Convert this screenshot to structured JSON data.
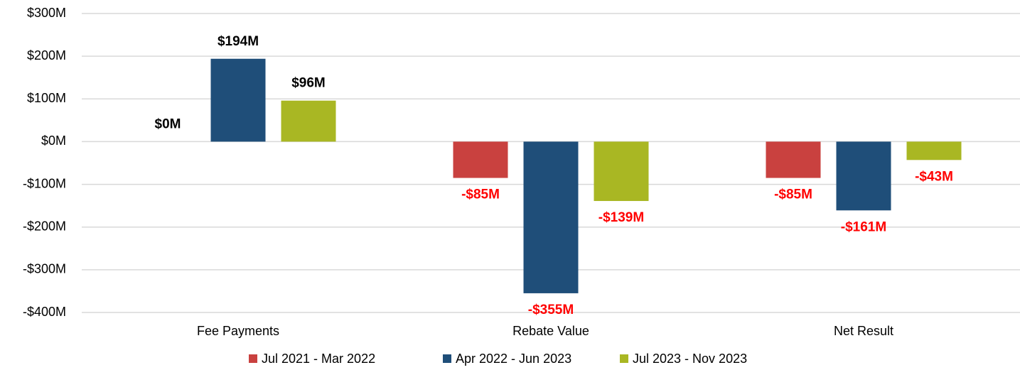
{
  "chart_data": {
    "type": "bar",
    "categories": [
      "Fee Payments",
      "Rebate Value",
      "Net Result"
    ],
    "series": [
      {
        "name": "Jul 2021 - Mar 2022",
        "color": "#C9413F",
        "values": [
          0,
          -85,
          -85
        ],
        "value_labels": [
          "$0M",
          "-$85M",
          "-$85M"
        ]
      },
      {
        "name": "Apr 2022 - Jun 2023",
        "color": "#1F4E79",
        "values": [
          194,
          -355,
          -161
        ],
        "value_labels": [
          "$194M",
          "-$355M",
          "-$161M"
        ]
      },
      {
        "name": "Jul 2023 - Nov 2023",
        "color": "#A9B723",
        "values": [
          96,
          -139,
          -43
        ],
        "value_labels": [
          "$96M",
          "-$139M",
          "-$43M"
        ]
      }
    ],
    "ylim": [
      -400,
      300
    ],
    "yticks": [
      {
        "value": -400,
        "label": "-$400M"
      },
      {
        "value": -300,
        "label": "-$300M"
      },
      {
        "value": -200,
        "label": "-$200M"
      },
      {
        "value": -100,
        "label": "-$100M"
      },
      {
        "value": 0,
        "label": "$0M"
      },
      {
        "value": 100,
        "label": "$100M"
      },
      {
        "value": 200,
        "label": "$200M"
      },
      {
        "value": 300,
        "label": "$300M"
      }
    ],
    "grid": true,
    "legend": "bottom"
  }
}
